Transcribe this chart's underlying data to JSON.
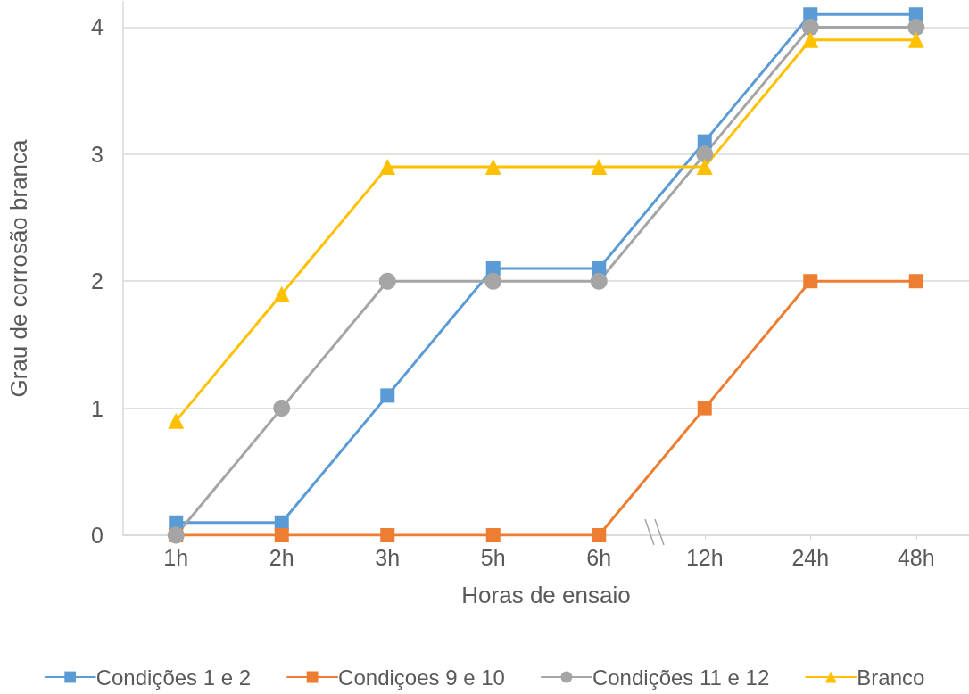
{
  "chart_data": {
    "type": "line",
    "categories": [
      "1h",
      "2h",
      "3h",
      "5h",
      "6h",
      "12h",
      "24h",
      "48h"
    ],
    "series": [
      {
        "name": "Condições 1 e 2",
        "color": "#5b9bd5",
        "marker": "square",
        "values": [
          0.1,
          0.1,
          1.1,
          2.1,
          2.1,
          3.1,
          4.1,
          4.1
        ]
      },
      {
        "name": "Condiçoes 9 e 10",
        "color": "#ed7d31",
        "marker": "square",
        "values": [
          0,
          0,
          0,
          0,
          0,
          1,
          2,
          2
        ]
      },
      {
        "name": "Condições 11 e 12",
        "color": "#a5a5a5",
        "marker": "circle",
        "values": [
          0,
          1,
          2,
          2,
          2,
          3,
          4,
          4
        ]
      },
      {
        "name": "Branco",
        "color": "#ffc000",
        "marker": "triangle",
        "values": [
          0.9,
          1.9,
          2.9,
          2.9,
          2.9,
          2.9,
          3.9,
          3.9
        ]
      }
    ],
    "xlabel": "Horas de ensaio",
    "ylabel": "Grau de corrosão branca",
    "ylim": [
      0,
      4.2
    ],
    "yticks": [
      0,
      1,
      2,
      3,
      4
    ],
    "grid": "y",
    "legend": "bottom",
    "line_style": "solid"
  }
}
